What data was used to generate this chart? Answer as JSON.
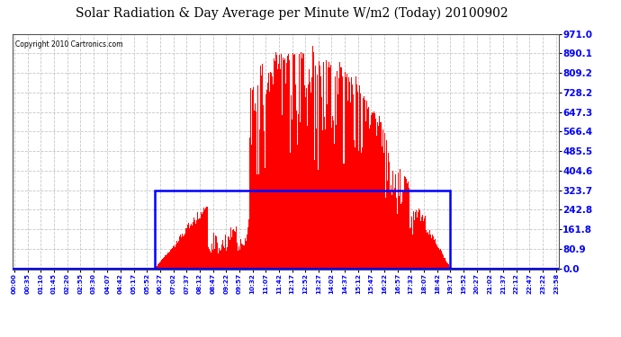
{
  "title": "Solar Radiation & Day Average per Minute W/m2 (Today) 20100902",
  "copyright": "Copyright 2010 Cartronics.com",
  "background_color": "#ffffff",
  "plot_bg_color": "#ffffff",
  "bar_color": "#ff0000",
  "grid_color": "#c0c0c0",
  "ytick_labels": [
    "0.0",
    "80.9",
    "161.8",
    "242.8",
    "323.7",
    "404.6",
    "485.5",
    "566.4",
    "647.3",
    "728.2",
    "809.2",
    "890.1",
    "971.0"
  ],
  "ytick_values": [
    0.0,
    80.9,
    161.8,
    242.8,
    323.7,
    404.6,
    485.5,
    566.4,
    647.3,
    728.2,
    809.2,
    890.1,
    971.0
  ],
  "ymax": 971.0,
  "ymin": 0.0,
  "day_avg_value": 323.7,
  "xtick_labels": [
    "00:00",
    "00:35",
    "01:10",
    "01:45",
    "02:20",
    "02:55",
    "03:30",
    "04:07",
    "04:42",
    "05:17",
    "05:52",
    "06:27",
    "07:02",
    "07:37",
    "08:12",
    "08:47",
    "09:22",
    "09:57",
    "10:32",
    "11:07",
    "11:42",
    "12:17",
    "12:52",
    "13:27",
    "14:02",
    "14:37",
    "15:12",
    "15:47",
    "16:22",
    "16:57",
    "17:32",
    "18:07",
    "18:42",
    "19:17",
    "19:52",
    "20:27",
    "21:02",
    "21:37",
    "22:12",
    "22:47",
    "23:22",
    "23:58"
  ],
  "num_minutes": 1440,
  "sunrise_minute": 372,
  "sunset_minute": 1157
}
